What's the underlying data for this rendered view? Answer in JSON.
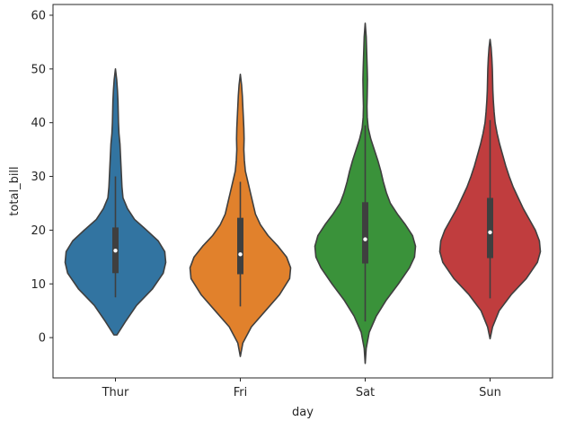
{
  "chart_data": {
    "type": "violin",
    "xlabel": "day",
    "ylabel": "total_bill",
    "ylim": [
      -7.5,
      62
    ],
    "yticks": [
      0,
      10,
      20,
      30,
      40,
      50,
      60
    ],
    "grid": false,
    "categories": [
      "Thur",
      "Fri",
      "Sat",
      "Sun"
    ],
    "colors": [
      "#3274a1",
      "#e1812c",
      "#3a923a",
      "#c03d3e"
    ],
    "violins": [
      {
        "category": "Thur",
        "kde_min": 0.5,
        "kde_max": 50.0,
        "q1": 12.0,
        "median": 16.2,
        "q3": 20.5,
        "whisker_low": 7.5,
        "whisker_high": 30.0,
        "profile": [
          [
            0.5,
            0.03
          ],
          [
            3,
            0.2
          ],
          [
            6,
            0.42
          ],
          [
            9,
            0.73
          ],
          [
            12,
            0.95
          ],
          [
            14,
            1.0
          ],
          [
            16,
            0.98
          ],
          [
            18,
            0.85
          ],
          [
            20,
            0.62
          ],
          [
            22,
            0.38
          ],
          [
            24,
            0.24
          ],
          [
            26,
            0.15
          ],
          [
            28,
            0.13
          ],
          [
            30,
            0.12
          ],
          [
            32,
            0.11
          ],
          [
            34,
            0.1
          ],
          [
            36,
            0.09
          ],
          [
            38,
            0.07
          ],
          [
            40,
            0.06
          ],
          [
            42,
            0.055
          ],
          [
            44,
            0.05
          ],
          [
            46,
            0.04
          ],
          [
            48,
            0.025
          ],
          [
            50,
            0.0
          ]
        ]
      },
      {
        "category": "Fri",
        "kde_min": -3.5,
        "kde_max": 49.0,
        "q1": 11.8,
        "median": 15.5,
        "q3": 22.3,
        "whisker_low": 5.8,
        "whisker_high": 29.0,
        "profile": [
          [
            -3.5,
            0.0
          ],
          [
            -1,
            0.05
          ],
          [
            2,
            0.22
          ],
          [
            5,
            0.5
          ],
          [
            8,
            0.78
          ],
          [
            11,
            0.98
          ],
          [
            13,
            1.0
          ],
          [
            15,
            0.92
          ],
          [
            17,
            0.75
          ],
          [
            19,
            0.55
          ],
          [
            21,
            0.4
          ],
          [
            23,
            0.3
          ],
          [
            25,
            0.25
          ],
          [
            27,
            0.2
          ],
          [
            29,
            0.15
          ],
          [
            31,
            0.1
          ],
          [
            33,
            0.08
          ],
          [
            35,
            0.07
          ],
          [
            37,
            0.075
          ],
          [
            39,
            0.07
          ],
          [
            41,
            0.06
          ],
          [
            43,
            0.05
          ],
          [
            45,
            0.04
          ],
          [
            47,
            0.025
          ],
          [
            49,
            0.0
          ]
        ]
      },
      {
        "category": "Sat",
        "kde_min": -4.8,
        "kde_max": 58.5,
        "q1": 13.8,
        "median": 18.3,
        "q3": 25.2,
        "whisker_low": 3.0,
        "whisker_high": 39.5,
        "profile": [
          [
            -4.8,
            0.0
          ],
          [
            -2,
            0.02
          ],
          [
            1,
            0.08
          ],
          [
            4,
            0.22
          ],
          [
            7,
            0.42
          ],
          [
            10,
            0.66
          ],
          [
            13,
            0.88
          ],
          [
            15,
            0.98
          ],
          [
            17,
            1.0
          ],
          [
            19,
            0.94
          ],
          [
            21,
            0.8
          ],
          [
            23,
            0.64
          ],
          [
            25,
            0.5
          ],
          [
            27,
            0.42
          ],
          [
            29,
            0.36
          ],
          [
            31,
            0.31
          ],
          [
            33,
            0.25
          ],
          [
            35,
            0.18
          ],
          [
            37,
            0.11
          ],
          [
            39,
            0.06
          ],
          [
            41,
            0.04
          ],
          [
            43,
            0.035
          ],
          [
            45,
            0.04
          ],
          [
            48,
            0.045
          ],
          [
            50,
            0.04
          ],
          [
            53,
            0.03
          ],
          [
            56,
            0.02
          ],
          [
            58.5,
            0.0
          ]
        ]
      },
      {
        "category": "Sun",
        "kde_min": -0.2,
        "kde_max": 55.5,
        "q1": 14.8,
        "median": 19.6,
        "q3": 26.0,
        "whisker_low": 7.3,
        "whisker_high": 40.5,
        "profile": [
          [
            -0.2,
            0.0
          ],
          [
            2,
            0.05
          ],
          [
            5,
            0.18
          ],
          [
            8,
            0.42
          ],
          [
            11,
            0.72
          ],
          [
            14,
            0.94
          ],
          [
            16,
            1.0
          ],
          [
            18,
            0.98
          ],
          [
            20,
            0.9
          ],
          [
            22,
            0.78
          ],
          [
            24,
            0.66
          ],
          [
            26,
            0.56
          ],
          [
            28,
            0.46
          ],
          [
            30,
            0.38
          ],
          [
            32,
            0.31
          ],
          [
            34,
            0.25
          ],
          [
            36,
            0.19
          ],
          [
            38,
            0.14
          ],
          [
            40,
            0.1
          ],
          [
            42,
            0.08
          ],
          [
            44,
            0.065
          ],
          [
            46,
            0.055
          ],
          [
            48,
            0.05
          ],
          [
            50,
            0.045
          ],
          [
            52,
            0.035
          ],
          [
            54,
            0.02
          ],
          [
            55.5,
            0.0
          ]
        ]
      }
    ]
  }
}
